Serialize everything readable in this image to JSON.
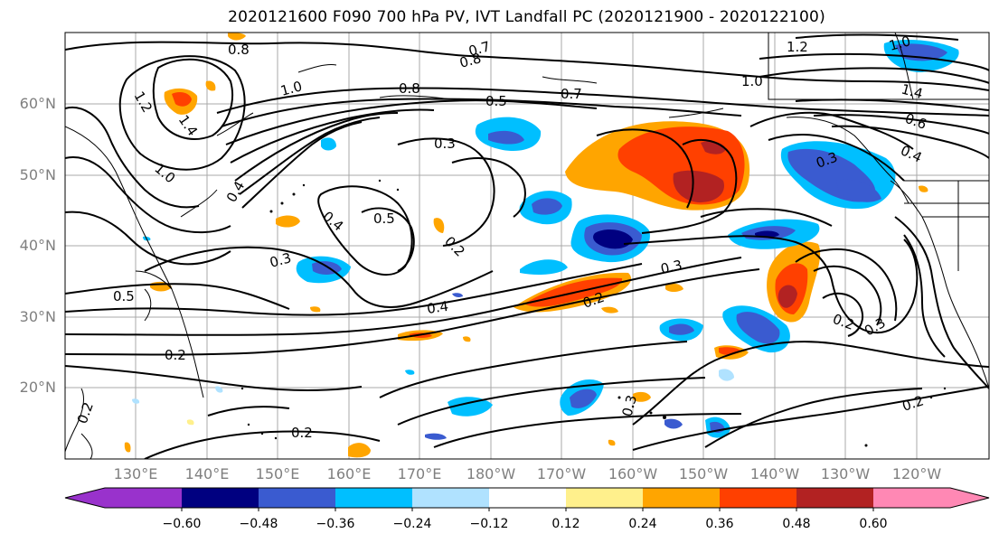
{
  "title": "2020121600 F090 700 hPa PV, IVT Landfall PC (2020121900 - 2020122100)",
  "lat_ticks": [
    "60°N",
    "50°N",
    "40°N",
    "30°N",
    "20°N"
  ],
  "lon_ticks": [
    "130°E",
    "140°E",
    "150°E",
    "160°E",
    "170°E",
    "180°W",
    "170°W",
    "160°W",
    "150°W",
    "140°W",
    "130°W",
    "120°W"
  ],
  "colorbar": {
    "tick_labels": [
      "−0.60",
      "−0.48",
      "−0.36",
      "−0.24",
      "−0.12",
      "0.12",
      "0.24",
      "0.36",
      "0.48",
      "0.60"
    ],
    "colors": [
      "#9932cc",
      "#000080",
      "#3a5bd0",
      "#00bfff",
      "#b0e2ff",
      "#ffffff",
      "#fff08c",
      "#ffa500",
      "#ff4000",
      "#b22222",
      "#ff88b4"
    ]
  },
  "contour_labels": [
    "0.8",
    "1.2",
    "1.4",
    "1.0",
    "1.0",
    "0.8",
    "0.7",
    "0.8",
    "0.5",
    "0.7",
    "1.0",
    "1.2",
    "1.0",
    "1.4",
    "0.6",
    "0.4",
    "0.3",
    "0.4",
    "0.5",
    "0.2",
    "0.3",
    "0.5",
    "0.4",
    "0.2",
    "0.3",
    "0.2",
    "0.3",
    "0.2",
    "0.3",
    "0.2",
    "0.2",
    "0.2",
    "0.3",
    "0.4"
  ]
}
